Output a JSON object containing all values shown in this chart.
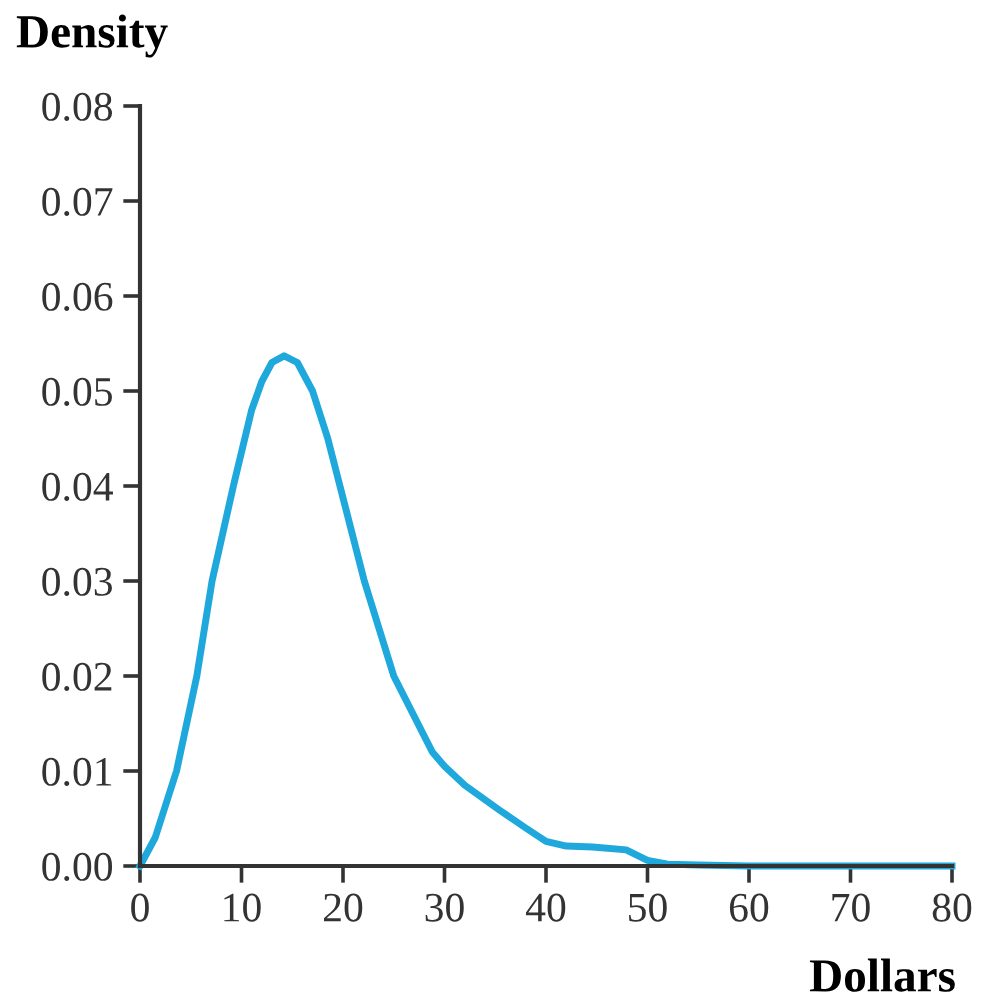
{
  "chart_data": {
    "type": "line",
    "xlabel": "Dollars",
    "ylabel": "Density",
    "series": [
      {
        "color": "#1fa8dc",
        "x": [
          0,
          1.5,
          3.6,
          5.6,
          7.1,
          9.2,
          11,
          12,
          13,
          14.2,
          15.5,
          17,
          18.5,
          19.7,
          22.1,
          25,
          28.8,
          30,
          32,
          35.4,
          38,
          40,
          42,
          44.6,
          47.9,
          50,
          52,
          55,
          60,
          70,
          80
        ],
        "values": [
          0,
          0.003,
          0.01,
          0.02,
          0.03,
          0.04,
          0.048,
          0.051,
          0.053,
          0.0537,
          0.053,
          0.05,
          0.045,
          0.04,
          0.03,
          0.02,
          0.012,
          0.0105,
          0.0085,
          0.0059,
          0.004,
          0.0026,
          0.0021,
          0.002,
          0.0017,
          0.0006,
          0.0002,
          0.0001,
          0,
          0,
          0
        ]
      }
    ],
    "xlim": [
      0,
      80
    ],
    "xticks": [
      0,
      10,
      20,
      30,
      40,
      50,
      60,
      70,
      80
    ],
    "ylim": [
      0,
      0.08
    ],
    "yticks": [
      {
        "value": 0,
        "label": "0.00"
      },
      {
        "value": 0.01,
        "label": "0.01"
      },
      {
        "value": 0.02,
        "label": "0.02"
      },
      {
        "value": 0.03,
        "label": "0.03"
      },
      {
        "value": 0.04,
        "label": "0.04"
      },
      {
        "value": 0.05,
        "label": "0.05"
      },
      {
        "value": 0.06,
        "label": "0.06"
      },
      {
        "value": 0.07,
        "label": "0.07"
      },
      {
        "value": 0.08,
        "label": "0.08"
      }
    ],
    "grid": false,
    "legend": false,
    "marker": "none",
    "line_style": "solid"
  }
}
